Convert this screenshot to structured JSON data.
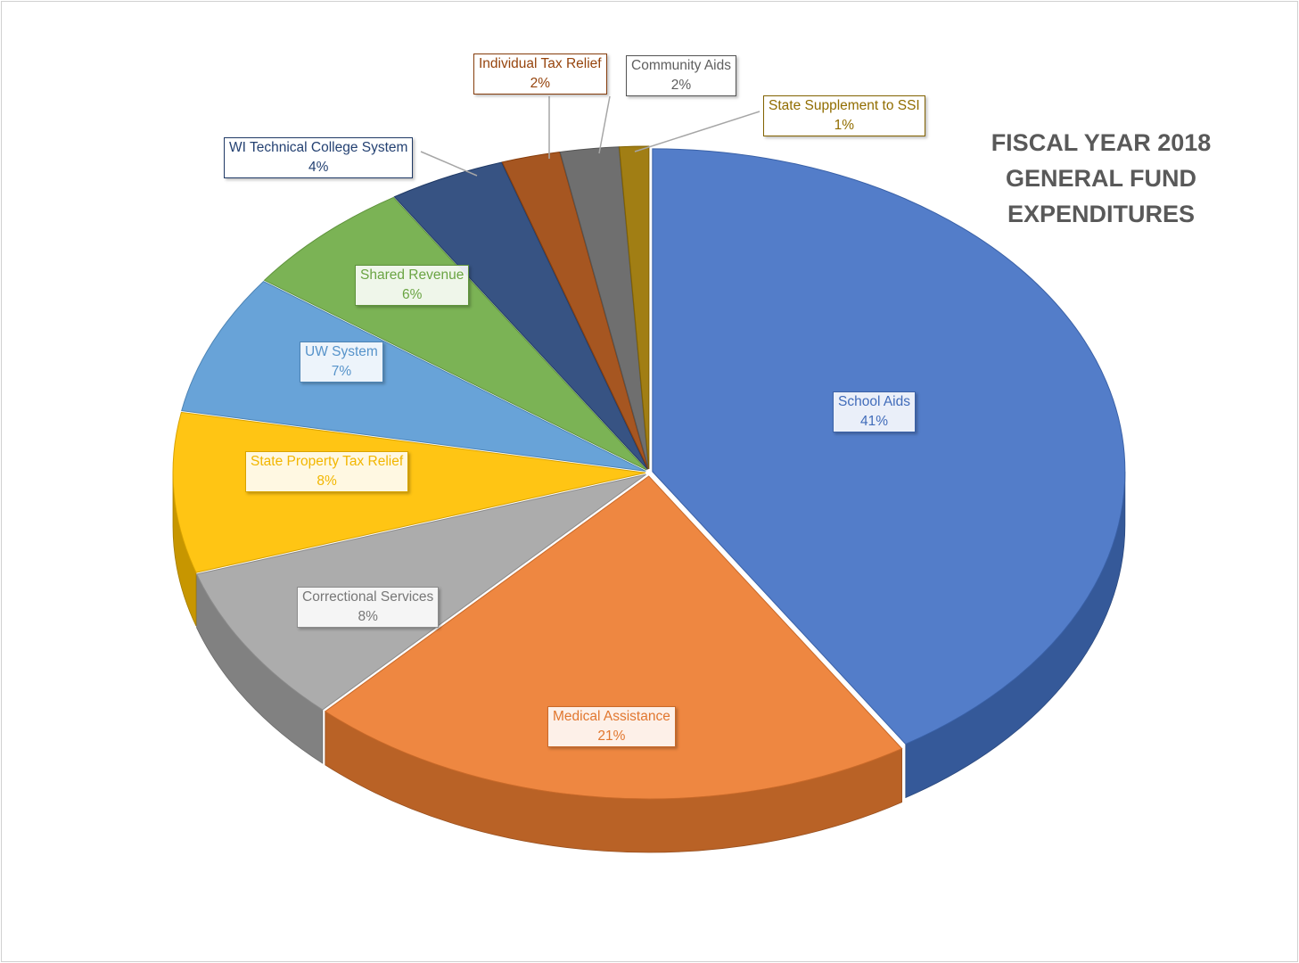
{
  "title_lines": [
    "FISCAL YEAR 2018",
    "GENERAL FUND",
    "EXPENDITURES"
  ],
  "chart_data": {
    "type": "pie",
    "title": "FISCAL YEAR 2018 GENERAL FUND EXPENDITURES",
    "style": "3d-exploded",
    "series": [
      {
        "name": "School Aids",
        "value": 41,
        "label": "41%",
        "color": "#4472c4"
      },
      {
        "name": "Medical Assistance",
        "value": 21,
        "label": "21%",
        "color": "#ed7d31"
      },
      {
        "name": "Correctional Services",
        "value": 8,
        "label": "8%",
        "color": "#a5a5a5"
      },
      {
        "name": "State Property Tax Relief",
        "value": 8,
        "label": "8%",
        "color": "#ffc000"
      },
      {
        "name": "UW System",
        "value": 7,
        "label": "7%",
        "color": "#5b9bd5"
      },
      {
        "name": "Shared Revenue",
        "value": 6,
        "label": "6%",
        "color": "#70ad47"
      },
      {
        "name": "WI Technical College System",
        "value": 4,
        "label": "4%",
        "color": "#264478"
      },
      {
        "name": "Individual Tax Relief",
        "value": 2,
        "label": "2%",
        "color": "#9e480e"
      },
      {
        "name": "Community Aids",
        "value": 2,
        "label": "2%",
        "color": "#636363"
      },
      {
        "name": "State Supplement to SSI",
        "value": 1,
        "label": "1%",
        "color": "#997300"
      }
    ]
  }
}
